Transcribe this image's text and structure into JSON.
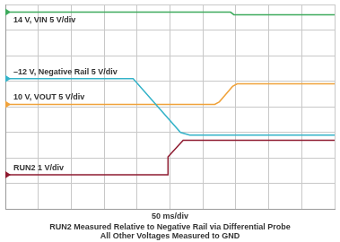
{
  "chart_data": {
    "type": "line",
    "title": [
      "RUN2 Measured Relative to Negative Rail via Differential Probe",
      "All Other Voltages Measured to GND"
    ],
    "x_label": "50 ms/div",
    "xlim": [
      0,
      500
    ],
    "xticks": [
      0,
      50,
      100,
      150,
      200,
      250,
      300,
      350,
      400,
      450,
      500
    ],
    "ylim": [
      0,
      8
    ],
    "yticks": [
      0,
      1,
      2,
      3,
      4,
      5,
      6,
      7,
      8
    ],
    "grid": true,
    "tick_labels": false,
    "series": [
      {
        "name": "14 V, VIN 5 V/div",
        "color": "#3daa5c",
        "x": [
          0,
          342,
          347,
          500
        ],
        "values": [
          7.7,
          7.7,
          7.6,
          7.6
        ]
      },
      {
        "name": "–12 V, Negative Rail 5 V/div",
        "color": "#35b3c9",
        "x": [
          0,
          194,
          266,
          280,
          500
        ],
        "values": [
          5.1,
          5.1,
          3.0,
          2.9,
          2.9
        ]
      },
      {
        "name": "10 V, VOUT 5 V/div",
        "color": "#f0a23a",
        "x": [
          0,
          318,
          325,
          335,
          345,
          352,
          500
        ],
        "values": [
          4.1,
          4.1,
          4.2,
          4.5,
          4.8,
          4.9,
          4.9
        ]
      },
      {
        "name": "RUN2 1 V/div",
        "color": "#8e1b30",
        "x": [
          0,
          247,
          247,
          270,
          500
        ],
        "values": [
          1.35,
          1.35,
          2.05,
          2.7,
          2.7
        ]
      }
    ]
  }
}
